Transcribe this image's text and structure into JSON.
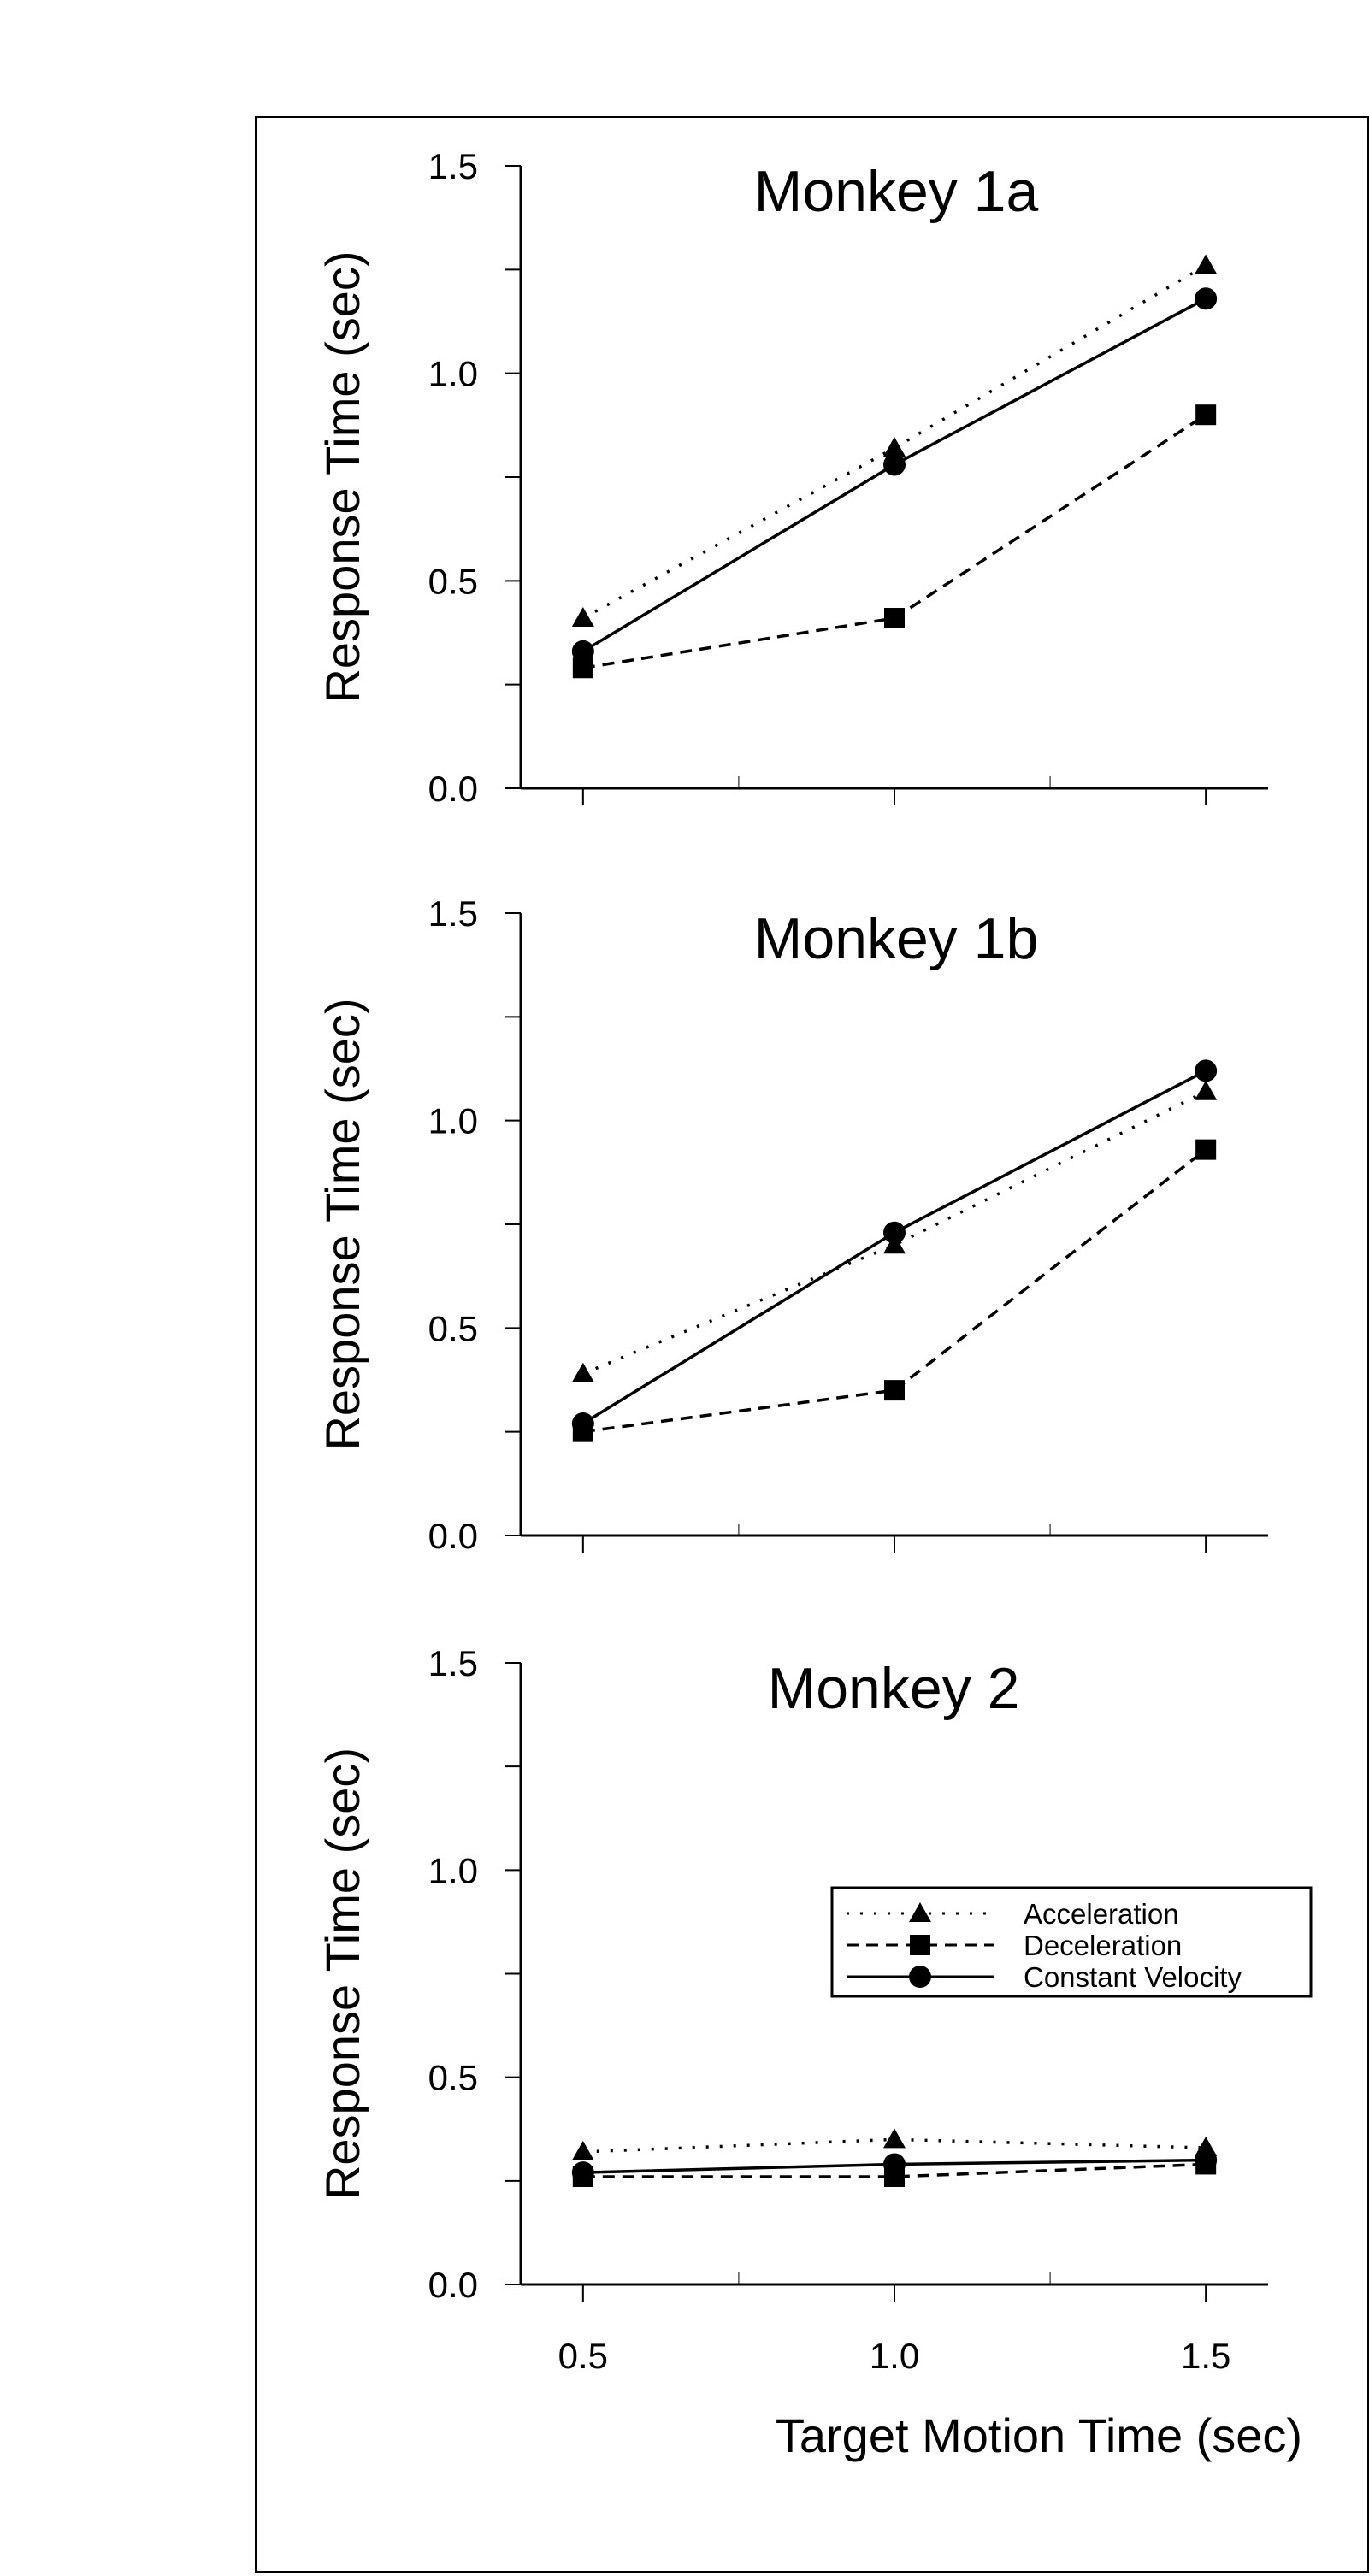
{
  "figure": {
    "xlabel": "Target Motion Time (sec)",
    "ylabel": "Response Time (sec)"
  },
  "legend": {
    "placement": "right, bottom panel",
    "entries": [
      {
        "label": "Acceleration",
        "marker": "triangle",
        "line": "dotted"
      },
      {
        "label": "Deceleration",
        "marker": "square",
        "line": "dashed"
      },
      {
        "label": "Constant Velocity",
        "marker": "circle",
        "line": "solid"
      }
    ]
  },
  "chart_data": [
    {
      "type": "line",
      "title": "Monkey 1a",
      "xlabel": "",
      "ylabel": "Response Time (sec)",
      "x": [
        0.5,
        1.0,
        1.5
      ],
      "xlim": [
        0.4,
        1.6
      ],
      "ylim": [
        0.0,
        1.5
      ],
      "yticks": [
        "0.0",
        "0.5",
        "1.0",
        "1.5"
      ],
      "xticks": [],
      "series": [
        {
          "name": "Acceleration",
          "values": [
            0.41,
            0.82,
            1.26
          ]
        },
        {
          "name": "Deceleration",
          "values": [
            0.29,
            0.41,
            0.9
          ]
        },
        {
          "name": "Constant Velocity",
          "values": [
            0.33,
            0.78,
            1.18
          ]
        }
      ]
    },
    {
      "type": "line",
      "title": "Monkey 1b",
      "xlabel": "",
      "ylabel": "Response Time (sec)",
      "x": [
        0.5,
        1.0,
        1.5
      ],
      "xlim": [
        0.4,
        1.6
      ],
      "ylim": [
        0.0,
        1.5
      ],
      "yticks": [
        "0.0",
        "0.5",
        "1.0",
        "1.5"
      ],
      "xticks": [],
      "series": [
        {
          "name": "Acceleration",
          "values": [
            0.39,
            0.7,
            1.07
          ]
        },
        {
          "name": "Deceleration",
          "values": [
            0.25,
            0.35,
            0.93
          ]
        },
        {
          "name": "Constant Velocity",
          "values": [
            0.27,
            0.73,
            1.12
          ]
        }
      ]
    },
    {
      "type": "line",
      "title": "Monkey 2",
      "xlabel": "Target Motion Time (sec)",
      "ylabel": "Response Time (sec)",
      "x": [
        0.5,
        1.0,
        1.5
      ],
      "xlim": [
        0.4,
        1.6
      ],
      "ylim": [
        0.0,
        1.5
      ],
      "yticks": [
        "0.0",
        "0.5",
        "1.0",
        "1.5"
      ],
      "xticks": [
        "0.5",
        "1.0",
        "1.5"
      ],
      "series": [
        {
          "name": "Acceleration",
          "values": [
            0.32,
            0.35,
            0.33
          ]
        },
        {
          "name": "Deceleration",
          "values": [
            0.26,
            0.26,
            0.29
          ]
        },
        {
          "name": "Constant Velocity",
          "values": [
            0.27,
            0.29,
            0.3
          ]
        }
      ]
    }
  ]
}
